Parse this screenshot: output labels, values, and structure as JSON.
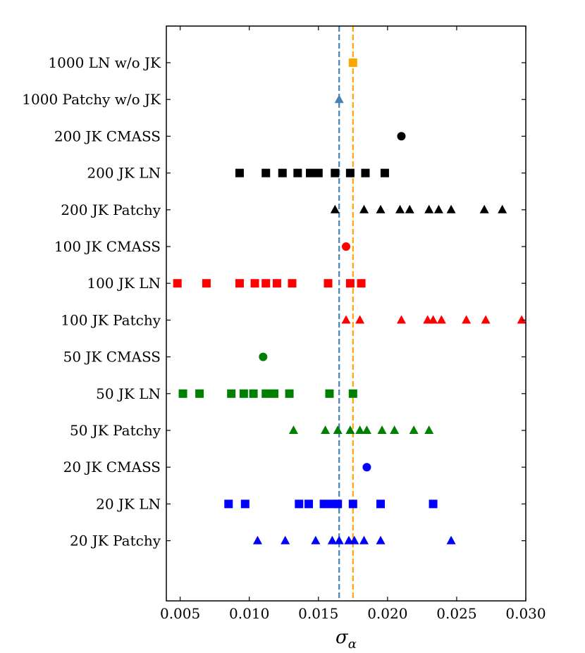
{
  "chart_data": {
    "type": "scatter",
    "title": "",
    "xlabel": "σα",
    "xlabel_main": "σ",
    "xlabel_sub": "α",
    "ylabel": "",
    "xlim": [
      0.004,
      0.03
    ],
    "xticks": [
      0.005,
      0.01,
      0.015,
      0.02,
      0.025,
      0.03
    ],
    "xtick_labels": [
      "0.005",
      "0.010",
      "0.015",
      "0.020",
      "0.025",
      "0.030"
    ],
    "grid": false,
    "categories": [
      "1000 LN w/o JK",
      "1000 Patchy w/o JK",
      "200 JK CMASS",
      "200 JK LN",
      "200 JK Patchy",
      "100 JK CMASS",
      "100 JK LN",
      "100 JK Patchy",
      "50 JK CMASS",
      "50 JK LN",
      "50 JK Patchy",
      "20 JK CMASS",
      "20 JK LN",
      "20 JK Patchy"
    ],
    "reference_lines": [
      {
        "x": 0.0165,
        "color": "#4682b4",
        "style": "dashed"
      },
      {
        "x": 0.0175,
        "color": "#ffa500",
        "style": "dashed"
      }
    ],
    "series": [
      {
        "category": "1000 LN w/o JK",
        "marker": "square",
        "color": "#ffa500",
        "x": [
          0.0175
        ]
      },
      {
        "category": "1000 Patchy w/o JK",
        "marker": "triangle",
        "color": "#4682b4",
        "x": [
          0.0165
        ]
      },
      {
        "category": "200 JK CMASS",
        "marker": "circle",
        "color": "#000000",
        "x": [
          0.021
        ]
      },
      {
        "category": "200 JK LN",
        "marker": "square",
        "color": "#000000",
        "x": [
          0.0093,
          0.0112,
          0.0124,
          0.0135,
          0.0144,
          0.015,
          0.0162,
          0.0173,
          0.0184,
          0.0198
        ]
      },
      {
        "category": "200 JK Patchy",
        "marker": "triangle",
        "color": "#000000",
        "x": [
          0.0162,
          0.0183,
          0.0195,
          0.0209,
          0.0216,
          0.023,
          0.0237,
          0.0246,
          0.027,
          0.0283
        ]
      },
      {
        "category": "100 JK CMASS",
        "marker": "circle",
        "color": "#ff0000",
        "x": [
          0.017
        ]
      },
      {
        "category": "100 JK LN",
        "marker": "square",
        "color": "#ff0000",
        "x": [
          0.0048,
          0.0069,
          0.0093,
          0.0104,
          0.0112,
          0.012,
          0.0131,
          0.0157,
          0.0173,
          0.0181
        ]
      },
      {
        "category": "100 JK Patchy",
        "marker": "triangle",
        "color": "#ff0000",
        "x": [
          0.017,
          0.018,
          0.021,
          0.0229,
          0.0233,
          0.0239,
          0.0257,
          0.0271,
          0.0297
        ]
      },
      {
        "category": "50 JK CMASS",
        "marker": "circle",
        "color": "#008000",
        "x": [
          0.011
        ]
      },
      {
        "category": "50 JK LN",
        "marker": "square",
        "color": "#008000",
        "x": [
          0.0052,
          0.0064,
          0.0087,
          0.0096,
          0.0103,
          0.0112,
          0.0118,
          0.0129,
          0.0158,
          0.0175
        ]
      },
      {
        "category": "50 JK Patchy",
        "marker": "triangle",
        "color": "#008000",
        "x": [
          0.0132,
          0.0155,
          0.0164,
          0.0173,
          0.018,
          0.0185,
          0.0196,
          0.0205,
          0.0219,
          0.023
        ]
      },
      {
        "category": "20 JK CMASS",
        "marker": "circle",
        "color": "#0000ff",
        "x": [
          0.0185
        ]
      },
      {
        "category": "20 JK LN",
        "marker": "square",
        "color": "#0000ff",
        "x": [
          0.0085,
          0.0097,
          0.0136,
          0.0143,
          0.0154,
          0.016,
          0.0164,
          0.0175,
          0.0195,
          0.0233
        ]
      },
      {
        "category": "20 JK Patchy",
        "marker": "triangle",
        "color": "#0000ff",
        "x": [
          0.0106,
          0.0126,
          0.0148,
          0.016,
          0.0165,
          0.0172,
          0.0176,
          0.0183,
          0.0195,
          0.0246
        ]
      }
    ]
  }
}
